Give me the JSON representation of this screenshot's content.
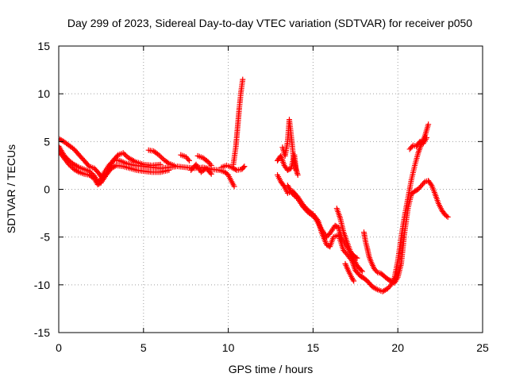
{
  "chart_data": {
    "type": "scatter",
    "title": "Day 299 of 2023, Sidereal Day-to-day VTEC variation (SDTVAR) for receiver p050",
    "xlabel": "GPS time / hours",
    "ylabel": "SDTVAR / TECUs",
    "xlim": [
      0,
      25
    ],
    "ylim": [
      -15,
      15
    ],
    "xticks": [
      0,
      5,
      10,
      15,
      20,
      25
    ],
    "yticks": [
      -15,
      -10,
      -5,
      0,
      5,
      10,
      15
    ],
    "grid": true,
    "marker": "plus",
    "series": [
      {
        "name": "SDTVAR",
        "color": "#ff0000",
        "tracks": [
          [
            [
              0.0,
              4.5
            ],
            [
              0.3,
              3.6
            ],
            [
              0.6,
              3.0
            ],
            [
              0.9,
              2.6
            ],
            [
              1.2,
              2.3
            ],
            [
              1.5,
              2.1
            ],
            [
              1.8,
              1.9
            ],
            [
              2.1,
              1.4
            ],
            [
              2.3,
              0.8
            ],
            [
              2.5,
              1.0
            ],
            [
              2.7,
              1.8
            ],
            [
              3.0,
              2.6
            ],
            [
              3.3,
              3.1
            ],
            [
              3.6,
              3.0
            ],
            [
              4.0,
              2.7
            ],
            [
              4.5,
              2.5
            ],
            [
              5.0,
              2.4
            ],
            [
              5.5,
              2.3
            ],
            [
              6.0,
              2.2
            ],
            [
              6.5,
              2.3
            ],
            [
              7.0,
              2.4
            ],
            [
              7.5,
              2.3
            ],
            [
              8.0,
              2.2
            ],
            [
              8.5,
              2.3
            ],
            [
              9.0,
              2.1
            ],
            [
              9.5,
              2.0
            ],
            [
              9.8,
              1.8
            ],
            [
              10.0,
              1.5
            ],
            [
              10.2,
              0.8
            ],
            [
              10.35,
              0.3
            ]
          ],
          [
            [
              0.0,
              5.3
            ],
            [
              0.3,
              5.0
            ],
            [
              0.6,
              4.6
            ],
            [
              0.9,
              4.2
            ],
            [
              1.2,
              3.6
            ],
            [
              1.5,
              3.0
            ],
            [
              1.8,
              2.4
            ],
            [
              2.1,
              2.2
            ],
            [
              2.4,
              1.6
            ],
            [
              2.6,
              1.1
            ],
            [
              2.9,
              1.8
            ],
            [
              3.2,
              3.0
            ],
            [
              3.5,
              3.6
            ],
            [
              3.8,
              3.8
            ],
            [
              4.1,
              3.3
            ],
            [
              4.5,
              2.9
            ],
            [
              5.0,
              2.6
            ],
            [
              5.5,
              2.5
            ],
            [
              6.0,
              2.6
            ]
          ],
          [
            [
              0.0,
              4.0
            ],
            [
              0.3,
              3.3
            ],
            [
              0.6,
              2.6
            ],
            [
              0.9,
              2.1
            ],
            [
              1.2,
              1.8
            ],
            [
              1.5,
              1.6
            ],
            [
              1.8,
              1.5
            ],
            [
              2.1,
              1.1
            ],
            [
              2.3,
              0.5
            ],
            [
              2.5,
              0.7
            ],
            [
              2.8,
              1.5
            ],
            [
              3.1,
              2.2
            ],
            [
              3.4,
              2.5
            ],
            [
              3.8,
              2.4
            ],
            [
              4.2,
              2.2
            ],
            [
              4.6,
              2.0
            ],
            [
              5.0,
              1.9
            ],
            [
              5.5,
              1.8
            ],
            [
              6.0,
              1.8
            ],
            [
              6.5,
              2.0
            ]
          ],
          [
            [
              5.3,
              4.1
            ],
            [
              5.6,
              4.0
            ],
            [
              5.9,
              3.6
            ],
            [
              6.2,
              3.1
            ],
            [
              6.5,
              2.7
            ],
            [
              6.8,
              2.5
            ]
          ],
          [
            [
              7.2,
              3.6
            ],
            [
              7.5,
              3.4
            ],
            [
              7.7,
              3.0
            ]
          ],
          [
            [
              8.2,
              3.5
            ],
            [
              8.5,
              3.3
            ],
            [
              8.8,
              2.9
            ],
            [
              9.0,
              2.5
            ]
          ],
          [
            [
              7.8,
              2.0
            ],
            [
              8.1,
              2.6
            ],
            [
              8.4,
              1.8
            ],
            [
              8.7,
              2.2
            ],
            [
              9.0,
              1.6
            ]
          ],
          [
            [
              9.6,
              2.3
            ],
            [
              9.9,
              2.5
            ],
            [
              10.2,
              2.3
            ],
            [
              10.5,
              2.0
            ],
            [
              10.8,
              2.1
            ],
            [
              10.95,
              2.4
            ]
          ],
          [
            [
              10.3,
              2.6
            ],
            [
              10.45,
              4.5
            ],
            [
              10.55,
              6.5
            ],
            [
              10.65,
              8.5
            ],
            [
              10.75,
              10.2
            ],
            [
              10.85,
              11.5
            ]
          ],
          [
            [
              12.9,
              3.0
            ],
            [
              13.1,
              3.5
            ],
            [
              13.3,
              2.5
            ],
            [
              13.5,
              2.0
            ],
            [
              13.7,
              2.2
            ],
            [
              13.9,
              3.6
            ],
            [
              14.0,
              2.0
            ]
          ],
          [
            [
              13.2,
              4.4
            ],
            [
              13.35,
              3.5
            ],
            [
              13.5,
              5.0
            ],
            [
              13.6,
              7.3
            ],
            [
              13.7,
              5.8
            ],
            [
              13.85,
              3.2
            ],
            [
              14.0,
              2.1
            ],
            [
              14.1,
              1.5
            ]
          ],
          [
            [
              12.9,
              1.5
            ],
            [
              13.1,
              0.8
            ],
            [
              13.3,
              0.3
            ],
            [
              13.5,
              -0.4
            ],
            [
              13.8,
              -0.2
            ],
            [
              14.1,
              -0.8
            ],
            [
              14.4,
              -1.6
            ],
            [
              14.7,
              -2.2
            ],
            [
              15.0,
              -2.6
            ],
            [
              15.3,
              -3.3
            ],
            [
              15.5,
              -4.5
            ],
            [
              15.8,
              -5.8
            ],
            [
              16.0,
              -6.0
            ],
            [
              16.2,
              -5.0
            ],
            [
              16.5,
              -4.8
            ],
            [
              16.8,
              -6.4
            ],
            [
              17.0,
              -6.8
            ],
            [
              17.3,
              -7.5
            ],
            [
              17.5,
              -8.5
            ],
            [
              17.8,
              -9.1
            ],
            [
              18.0,
              -9.3
            ],
            [
              18.2,
              -9.6
            ],
            [
              18.5,
              -10.2
            ],
            [
              18.8,
              -10.5
            ],
            [
              19.1,
              -10.7
            ],
            [
              19.4,
              -10.4
            ],
            [
              19.6,
              -10.0
            ],
            [
              19.8,
              -9.3
            ],
            [
              20.0,
              -7.5
            ],
            [
              20.2,
              -5.0
            ],
            [
              20.4,
              -2.8
            ],
            [
              20.6,
              -0.9
            ],
            [
              20.8,
              1.0
            ],
            [
              21.0,
              2.5
            ],
            [
              21.2,
              3.8
            ],
            [
              21.4,
              4.8
            ],
            [
              21.6,
              5.6
            ],
            [
              21.8,
              6.8
            ]
          ],
          [
            [
              13.5,
              0.4
            ],
            [
              13.8,
              -0.5
            ],
            [
              14.1,
              -1.0
            ],
            [
              14.4,
              -1.8
            ],
            [
              14.7,
              -2.4
            ],
            [
              15.0,
              -2.8
            ],
            [
              15.2,
              -3.2
            ],
            [
              15.5,
              -4.2
            ],
            [
              15.8,
              -5.0
            ],
            [
              16.0,
              -4.6
            ],
            [
              16.3,
              -3.8
            ],
            [
              16.5,
              -4.0
            ],
            [
              16.7,
              -5.2
            ],
            [
              17.0,
              -6.0
            ],
            [
              17.3,
              -7.0
            ],
            [
              17.6,
              -8.0
            ],
            [
              17.9,
              -8.6
            ]
          ],
          [
            [
              16.4,
              -2.0
            ],
            [
              16.6,
              -3.0
            ],
            [
              16.8,
              -4.5
            ],
            [
              17.0,
              -5.5
            ],
            [
              17.2,
              -6.5
            ],
            [
              17.4,
              -7.0
            ],
            [
              17.6,
              -7.2
            ]
          ],
          [
            [
              16.9,
              -7.8
            ],
            [
              17.1,
              -8.6
            ],
            [
              17.3,
              -9.3
            ],
            [
              17.4,
              -9.6
            ]
          ],
          [
            [
              18.0,
              -4.5
            ],
            [
              18.1,
              -5.5
            ],
            [
              18.2,
              -6.2
            ],
            [
              18.3,
              -7.0
            ],
            [
              18.4,
              -7.5
            ],
            [
              18.6,
              -8.3
            ],
            [
              18.8,
              -8.7
            ],
            [
              19.0,
              -8.8
            ],
            [
              19.2,
              -9.1
            ],
            [
              19.4,
              -9.4
            ],
            [
              19.6,
              -9.6
            ],
            [
              19.8,
              -9.8
            ],
            [
              20.0,
              -9.2
            ],
            [
              20.2,
              -7.8
            ],
            [
              20.4,
              -4.5
            ],
            [
              20.6,
              -2.0
            ],
            [
              20.8,
              -0.5
            ],
            [
              21.0,
              -0.2
            ],
            [
              21.2,
              0.0
            ],
            [
              21.4,
              0.4
            ],
            [
              21.6,
              0.8
            ],
            [
              21.8,
              0.9
            ],
            [
              22.0,
              0.4
            ],
            [
              22.2,
              -0.5
            ],
            [
              22.4,
              -1.5
            ],
            [
              22.6,
              -2.2
            ],
            [
              22.8,
              -2.7
            ],
            [
              22.95,
              -2.9
            ]
          ],
          [
            [
              20.7,
              4.2
            ],
            [
              20.9,
              4.6
            ],
            [
              21.1,
              4.5
            ],
            [
              21.3,
              5.0
            ],
            [
              21.5,
              4.8
            ],
            [
              21.7,
              5.4
            ]
          ]
        ]
      }
    ]
  }
}
